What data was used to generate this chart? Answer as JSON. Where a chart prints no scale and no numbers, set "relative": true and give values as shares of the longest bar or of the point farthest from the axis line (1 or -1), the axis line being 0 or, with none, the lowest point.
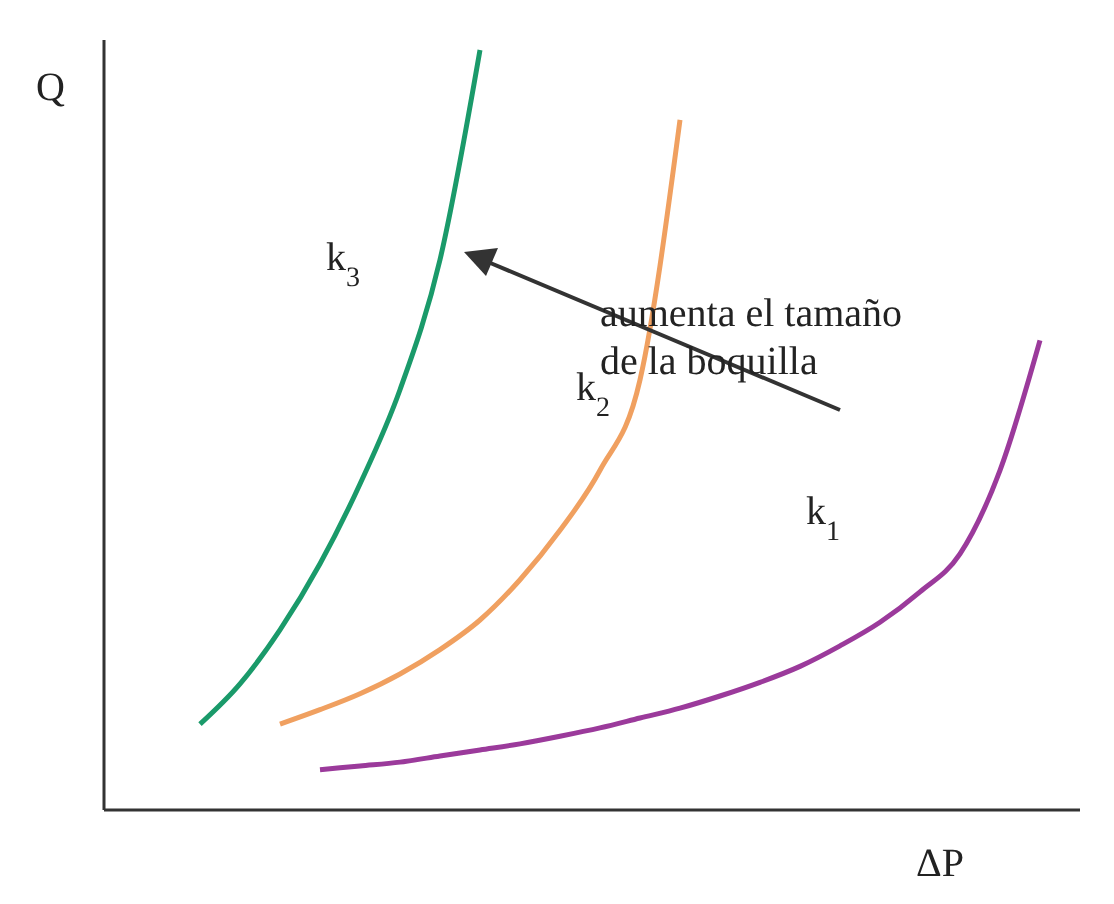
{
  "chart_data": {
    "type": "line",
    "relative": true,
    "xlabel": "ΔP",
    "ylabel": "Q",
    "marker": "none",
    "line_style": "solid",
    "categories": [
      null,
      null,
      null,
      null,
      null,
      null,
      null,
      null,
      null,
      null,
      null,
      null,
      null,
      null,
      null,
      null,
      null,
      null,
      null,
      null,
      null,
      null
    ],
    "series": [
      {
        "name": "k$_{1}$",
        "color": "#9b3a9b",
        "values": [
          null,
          null,
          null,
          0.053,
          0.058,
          0.063,
          0.071,
          0.079,
          0.087,
          0.097,
          0.108,
          0.121,
          0.134,
          0.15,
          0.168,
          0.189,
          0.216,
          0.247,
          0.287,
          0.337,
          0.447,
          0.618
        ]
      },
      {
        "name": "k$_{2}$",
        "color": "#f0a060",
        "values": [
          null,
          null,
          0.113,
          0.132,
          0.153,
          0.179,
          0.211,
          0.25,
          0.303,
          0.368,
          0.447,
          0.566,
          0.908,
          null,
          null,
          null,
          null,
          null,
          null,
          null,
          null,
          null
        ]
      },
      {
        "name": "k$_{3}$",
        "color": "#1a9a6a",
        "values": [
          0.113,
          0.166,
          0.237,
          0.324,
          0.429,
          0.553,
          0.724,
          1.0,
          null,
          null,
          null,
          null,
          null,
          null,
          null,
          null,
          null,
          null,
          null,
          null,
          null,
          null
        ]
      }
    ],
    "annotations": [
      "aumenta el tamaño\nde la boquilla"
    ]
  }
}
